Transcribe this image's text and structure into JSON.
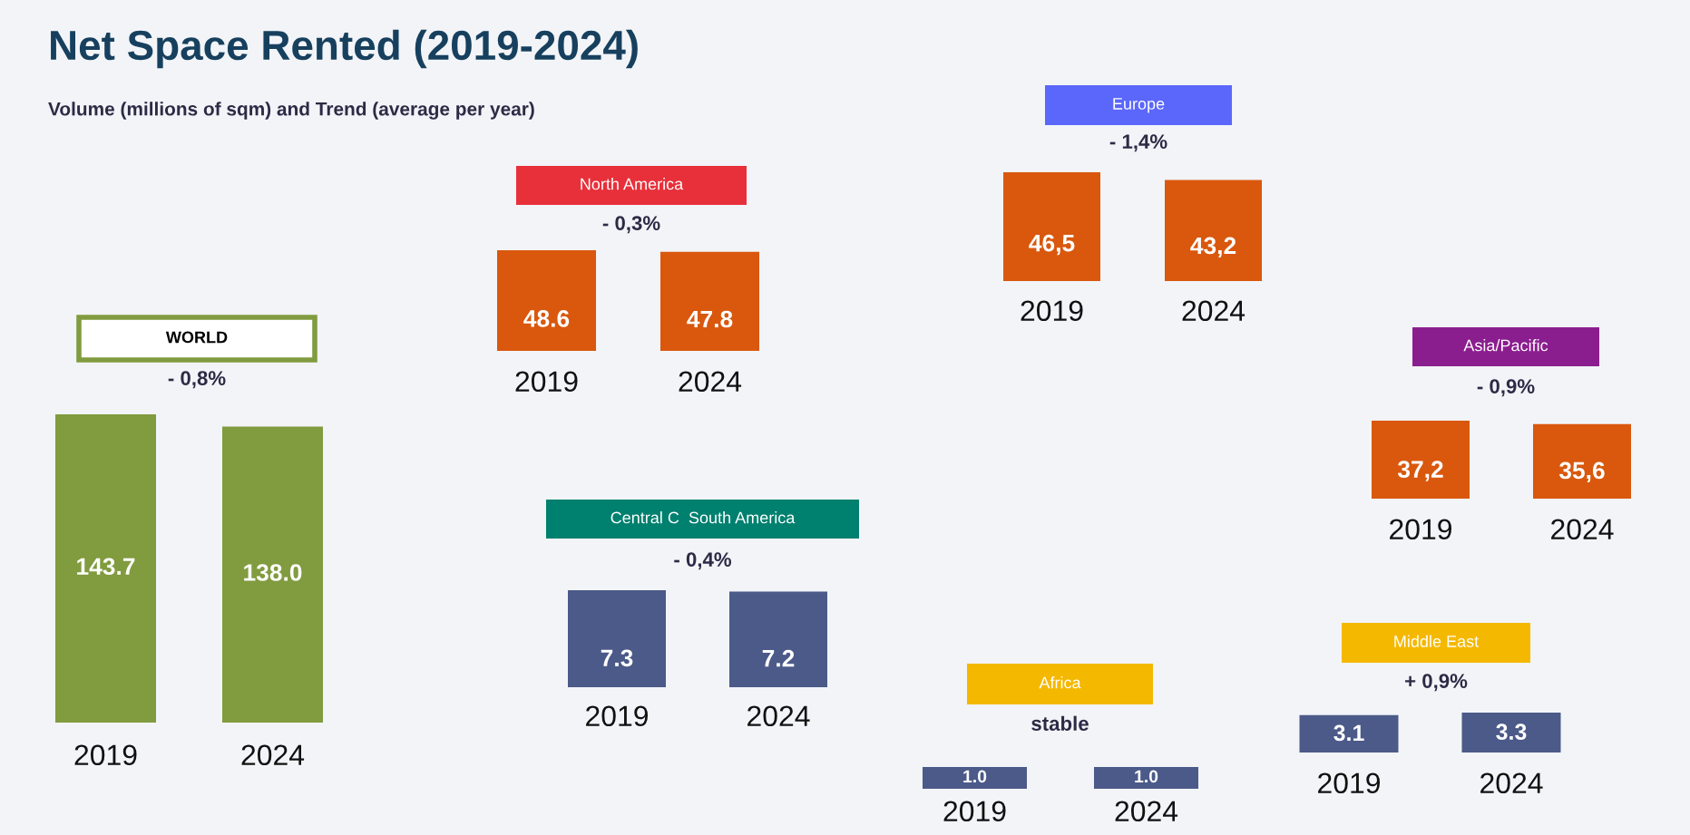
{
  "chart_data": [
    {
      "type": "other",
      "title": "Net Space Rented (2019-2024)",
      "subtitle": "Volume (millions of sqm) and Trend (average per year)"
    },
    {
      "type": "bar",
      "title": "WORLD",
      "subtitle": "- 0,8%",
      "categories": [
        "2019",
        "2024"
      ],
      "values": [
        143.7,
        138.0
      ],
      "value_labels": [
        "143.7",
        "138.0"
      ],
      "color": "#819b3f"
    },
    {
      "type": "bar",
      "title": "North America",
      "subtitle": "- 0,3%",
      "categories": [
        "2019",
        "2024"
      ],
      "values": [
        48.6,
        47.8
      ],
      "value_labels": [
        "48.6",
        "47.8"
      ],
      "color": "#d9580d"
    },
    {
      "type": "bar",
      "title": "Europe",
      "subtitle": "- 1,4%",
      "categories": [
        "2019",
        "2024"
      ],
      "values": [
        46.5,
        43.2
      ],
      "value_labels": [
        "46,5",
        "43,2"
      ],
      "color": "#d9580d"
    },
    {
      "type": "bar",
      "title": "Asia/Pacific",
      "subtitle": "- 0,9%",
      "categories": [
        "2019",
        "2024"
      ],
      "values": [
        37.2,
        35.6
      ],
      "value_labels": [
        "37,2",
        "35,6"
      ],
      "color": "#d9580d"
    },
    {
      "type": "bar",
      "title": "Central C  South America",
      "subtitle": "- 0,4%",
      "categories": [
        "2019",
        "2024"
      ],
      "values": [
        7.3,
        7.2
      ],
      "value_labels": [
        "7.3",
        "7.2"
      ],
      "color": "#4b5a88"
    },
    {
      "type": "bar",
      "title": "Middle East",
      "subtitle": "+ 0,9%",
      "categories": [
        "2019",
        "2024"
      ],
      "values": [
        3.1,
        3.3
      ],
      "value_labels": [
        "3.1",
        "3.3"
      ],
      "color": "#4b5a88"
    },
    {
      "type": "bar",
      "title": "Africa",
      "subtitle": "stable",
      "categories": [
        "2019",
        "2024"
      ],
      "values": [
        1.0,
        1.0
      ],
      "value_labels": [
        "1.0",
        "1.0"
      ],
      "color": "#4b5a88"
    }
  ]
}
